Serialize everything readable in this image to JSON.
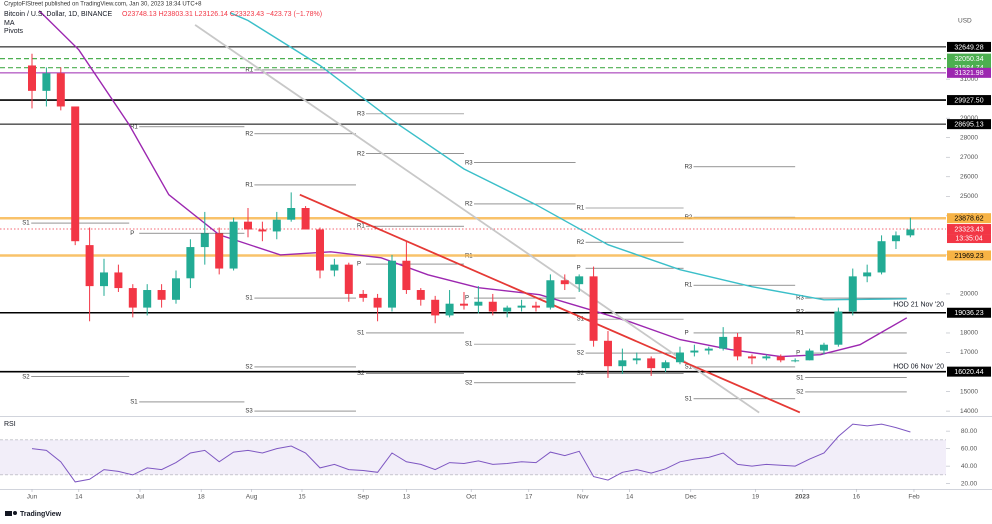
{
  "chart_data": {
    "type": "candlestick",
    "published": "CryptoFIStreet published on TradingView.com, Jan 30, 2023 18:34 UTC+8",
    "title": "Bitcoin / U.S. Dollar, 1D, BINANCE",
    "ohlc_text": "O23748.13 H23803.31 L23126.14 C23323.43 −423.73 (−1.78%)",
    "indicators": [
      "MA",
      "Pivots"
    ],
    "currency": "USD",
    "up_color": "#22ab94",
    "down_color": "#f23645",
    "x": [
      0,
      4,
      8,
      12,
      16,
      20,
      24,
      28,
      32,
      36,
      40,
      44,
      48,
      52,
      56,
      60,
      64,
      68,
      72,
      76,
      80,
      84,
      88,
      92,
      96,
      100,
      104,
      108,
      112,
      116,
      120,
      124,
      128,
      132,
      136,
      140,
      144,
      148,
      152,
      156,
      160,
      164,
      168,
      172,
      176,
      180,
      184,
      188,
      192,
      196,
      200,
      204,
      208,
      212,
      216,
      220,
      224,
      228,
      232,
      236,
      240,
      244
    ],
    "open": [
      31700,
      30400,
      31300,
      29600,
      22500,
      20400,
      21100,
      20300,
      19300,
      20200,
      19700,
      20800,
      22400,
      23100,
      21300,
      23700,
      23300,
      23200,
      23800,
      24400,
      23300,
      21200,
      21500,
      20000,
      19800,
      19300,
      21700,
      20200,
      19700,
      18900,
      19500,
      19400,
      19600,
      19100,
      19300,
      19400,
      19300,
      20700,
      20500,
      20900,
      17600,
      16300,
      16600,
      16700,
      16200,
      16500,
      17000,
      17100,
      17200,
      17800,
      16800,
      16700,
      16800,
      16600,
      16600,
      17100,
      17400,
      19100,
      20900,
      21100,
      22700,
      23000
    ],
    "high": [
      32300,
      31600,
      31600,
      29600,
      23400,
      21800,
      21500,
      20500,
      20500,
      20500,
      21200,
      22800,
      24200,
      23400,
      23900,
      24400,
      23700,
      24200,
      25200,
      24500,
      23400,
      21800,
      21600,
      20200,
      20000,
      22000,
      22700,
      20300,
      19900,
      20200,
      20100,
      20400,
      20000,
      19400,
      19700,
      19600,
      21000,
      21000,
      21000,
      21400,
      18100,
      17200,
      17000,
      16800,
      16600,
      17300,
      17400,
      17300,
      18300,
      18000,
      16900,
      16900,
      16900,
      16700,
      17200,
      17500,
      19300,
      21300,
      21500,
      23000,
      23200,
      23900
    ],
    "low": [
      29500,
      29600,
      29400,
      22500,
      18600,
      19900,
      20100,
      18800,
      18900,
      19300,
      19500,
      20300,
      21500,
      21000,
      21200,
      22900,
      22700,
      22800,
      23700,
      23300,
      20800,
      20900,
      19600,
      19600,
      18600,
      19100,
      20000,
      19400,
      18500,
      18800,
      19200,
      19000,
      18900,
      18800,
      19100,
      19100,
      19200,
      20200,
      20100,
      17300,
      15700,
      15900,
      16400,
      15800,
      16000,
      16400,
      16800,
      16900,
      17100,
      16600,
      16400,
      16600,
      16500,
      16500,
      16600,
      16900,
      17300,
      18900,
      20600,
      21000,
      22300,
      22900
    ],
    "close": [
      30400,
      31300,
      29600,
      22700,
      20400,
      21100,
      20300,
      19300,
      20200,
      19700,
      20800,
      22400,
      23100,
      21300,
      23700,
      23300,
      23200,
      23800,
      24400,
      23300,
      21200,
      21500,
      20000,
      19800,
      19300,
      21700,
      20200,
      19700,
      18900,
      19500,
      19400,
      19600,
      19100,
      19300,
      19400,
      19300,
      20700,
      20500,
      20900,
      17600,
      16300,
      16600,
      16700,
      16200,
      16500,
      17000,
      17100,
      17200,
      17800,
      16800,
      16700,
      16800,
      16600,
      16600,
      17100,
      17400,
      19100,
      20900,
      21100,
      22700,
      23000,
      23300
    ],
    "xlim": [
      -8.89,
      253.9
    ],
    "xticks": [
      {
        "value": 0,
        "label": "Jun"
      },
      {
        "value": 13,
        "label": "14"
      },
      {
        "value": 30,
        "label": "Jul"
      },
      {
        "value": 47,
        "label": "18"
      },
      {
        "value": 61,
        "label": "Aug"
      },
      {
        "value": 75,
        "label": "15"
      },
      {
        "value": 92,
        "label": "Sep"
      },
      {
        "value": 104,
        "label": "13"
      },
      {
        "value": 122,
        "label": "Oct"
      },
      {
        "value": 138,
        "label": "17"
      },
      {
        "value": 153,
        "label": "Nov"
      },
      {
        "value": 166,
        "label": "14"
      },
      {
        "value": 183,
        "label": "Dec"
      },
      {
        "value": 201,
        "label": "19"
      },
      {
        "value": 214,
        "label": "2023"
      },
      {
        "value": 229,
        "label": "16"
      },
      {
        "value": 245,
        "label": "Feb"
      }
    ],
    "ylim": [
      13800,
      34540
    ],
    "yticks": [
      14000,
      15000,
      17000,
      18000,
      20000,
      22000,
      24000,
      25000,
      26000,
      27000,
      28000,
      29000,
      31000
    ],
    "grid": false,
    "levels": [
      {
        "value": 32649.28,
        "color": "#000000",
        "text_color": "#ffffff",
        "style": "solid"
      },
      {
        "value": 32050.34,
        "color": "#4caf50",
        "text_color": "#ffffff",
        "style": "dashed"
      },
      {
        "value": 31584.74,
        "color": "#4caf50",
        "text_color": "#ffffff",
        "style": "dashed"
      },
      {
        "value": 31321.98,
        "color": "#9c27b0",
        "text_color": "#ffffff",
        "style": "solid"
      },
      {
        "value": 29927.5,
        "label": "29927.50",
        "color": "#000000",
        "text_color": "#ffffff",
        "style": "thick"
      },
      {
        "value": 28695.13,
        "color": "#000000",
        "text_color": "#ffffff",
        "style": "solid"
      },
      {
        "value": 23878.62,
        "color": "#f7b345",
        "text_color": "#000000",
        "style": "band"
      },
      {
        "value": 23323.43,
        "color": "#f23645",
        "text_color": "#ffffff",
        "style": "dotted"
      },
      {
        "value": 21969.23,
        "color": "#f7b345",
        "text_color": "#000000",
        "style": "band"
      },
      {
        "value": 19036.23,
        "color": "#000000",
        "text_color": "#ffffff",
        "style": "thick"
      },
      {
        "value": 16020.44,
        "color": "#000000",
        "text_color": "#ffffff",
        "style": "thick"
      }
    ],
    "countdown": "13:35:04",
    "moving_averages": [
      {
        "color": "#3bbfc9",
        "x": [
          55,
          60,
          80,
          100,
          120,
          140,
          160,
          180,
          200,
          220,
          243
        ],
        "values": [
          34400,
          34000,
          31700,
          28900,
          26400,
          24570,
          22520,
          21240,
          20370,
          19700,
          19750
        ]
      },
      {
        "color": "#9c27b0",
        "x": [
          2,
          13,
          27,
          38,
          52,
          69,
          83,
          97,
          110,
          124,
          141,
          155,
          166,
          180,
          194,
          208,
          219,
          230,
          243
        ],
        "values": [
          34500,
          32500,
          28660,
          25080,
          23030,
          22000,
          22160,
          21850,
          20980,
          20320,
          19960,
          19190,
          18580,
          17660,
          17150,
          16790,
          16890,
          17400,
          18780
        ]
      }
    ],
    "trendlines": [
      {
        "color": "#c8c8c8",
        "x": [
          45.3,
          202
        ],
        "values": [
          33780,
          13920
        ]
      },
      {
        "color": "#e53935",
        "x": [
          74.4,
          213.3
        ],
        "values": [
          25080,
          13930
        ]
      }
    ],
    "pivots": [
      {
        "label": "R1",
        "value": 31470,
        "from": 59,
        "to": 90
      },
      {
        "label": "R1",
        "value": 28560,
        "from": 27,
        "to": 59
      },
      {
        "label": "R3",
        "value": 29220,
        "from": 90,
        "to": 120
      },
      {
        "label": "R2",
        "value": 28200,
        "from": 59,
        "to": 90
      },
      {
        "label": "R2",
        "value": 27180,
        "from": 90,
        "to": 120
      },
      {
        "label": "R3",
        "value": 26720,
        "from": 120,
        "to": 151
      },
      {
        "label": "R3",
        "value": 26510,
        "from": 181,
        "to": 212
      },
      {
        "label": "R1",
        "value": 25580,
        "from": 59,
        "to": 90
      },
      {
        "label": "R2",
        "value": 24610,
        "from": 120,
        "to": 151
      },
      {
        "label": "R1",
        "value": 24400,
        "from": 151,
        "to": 181
      },
      {
        "label": "R2",
        "value": 23930,
        "from": 181,
        "to": 212
      },
      {
        "label": "S1",
        "value": 23630,
        "from": -3,
        "to": 27
      },
      {
        "label": "R1",
        "value": 23470,
        "from": 90,
        "to": 120
      },
      {
        "label": "P",
        "value": 23110,
        "from": 27,
        "to": 59
      },
      {
        "label": "R2",
        "value": 22650,
        "from": 151,
        "to": 181
      },
      {
        "label": "R1",
        "value": 21940,
        "from": 120,
        "to": 151
      },
      {
        "label": "P",
        "value": 21530,
        "from": 90,
        "to": 120
      },
      {
        "label": "P",
        "value": 21320,
        "from": 151,
        "to": 181
      },
      {
        "label": "R1",
        "value": 20450,
        "from": 181,
        "to": 212
      },
      {
        "label": "S1",
        "value": 19790,
        "from": 59,
        "to": 90
      },
      {
        "label": "P",
        "value": 19790,
        "from": 120,
        "to": 151
      },
      {
        "label": "R3",
        "value": 19790,
        "from": 212,
        "to": 243
      },
      {
        "label": "R2",
        "value": 19070,
        "from": 212,
        "to": 243
      },
      {
        "label": "S1",
        "value": 18710,
        "from": 151,
        "to": 181
      },
      {
        "label": "S1",
        "value": 18000,
        "from": 90,
        "to": 120
      },
      {
        "label": "P",
        "value": 18000,
        "from": 181,
        "to": 212
      },
      {
        "label": "R1",
        "value": 18000,
        "from": 212,
        "to": 243
      },
      {
        "label": "S1",
        "value": 17430,
        "from": 120,
        "to": 151
      },
      {
        "label": "S2",
        "value": 16970,
        "from": 151,
        "to": 181
      },
      {
        "label": "P",
        "value": 16970,
        "from": 212,
        "to": 243
      },
      {
        "label": "S2",
        "value": 16260,
        "from": 59,
        "to": 90
      },
      {
        "label": "S1",
        "value": 16260,
        "from": 181,
        "to": 212
      },
      {
        "label": "S2",
        "value": 15920,
        "from": 90,
        "to": 120
      },
      {
        "label": "S2",
        "value": 15920,
        "from": 151,
        "to": 181
      },
      {
        "label": "S2",
        "value": 15760,
        "from": -3,
        "to": 27
      },
      {
        "label": "S1",
        "value": 15710,
        "from": 212,
        "to": 243
      },
      {
        "label": "S2",
        "value": 15450,
        "from": 120,
        "to": 151
      },
      {
        "label": "S2",
        "value": 14980,
        "from": 212,
        "to": 243
      },
      {
        "label": "S1",
        "value": 14630,
        "from": 181,
        "to": 212
      },
      {
        "label": "S1",
        "value": 14470,
        "from": 27,
        "to": 59
      },
      {
        "label": "S3",
        "value": 14000,
        "from": 59,
        "to": 90
      }
    ],
    "annotations": [
      {
        "text": "HOD 21 Nov '20",
        "value": 19450
      },
      {
        "text": "HOD 06 Nov '20",
        "value": 16280
      }
    ],
    "rsi": {
      "label": "RSI",
      "color": "#7e57c2",
      "values": [
        60,
        58,
        45,
        22,
        25,
        36,
        34,
        30,
        38,
        36,
        44,
        55,
        58,
        45,
        56,
        58,
        55,
        60,
        63,
        55,
        38,
        42,
        36,
        35,
        33,
        55,
        45,
        42,
        36,
        44,
        43,
        46,
        42,
        43,
        45,
        44,
        56,
        52,
        57,
        28,
        24,
        33,
        36,
        32,
        37,
        45,
        48,
        50,
        55,
        42,
        40,
        42,
        41,
        40,
        48,
        55,
        74,
        88,
        86,
        88,
        84,
        79
      ],
      "ylim": [
        15,
        95
      ],
      "yticks": [
        {
          "value": 80,
          "label": "80.00"
        },
        {
          "value": 60,
          "label": "60.00"
        },
        {
          "value": 40,
          "label": "40.00"
        },
        {
          "value": 20,
          "label": "20.00"
        }
      ],
      "band": [
        30,
        70
      ]
    },
    "footer": "TradingView"
  }
}
